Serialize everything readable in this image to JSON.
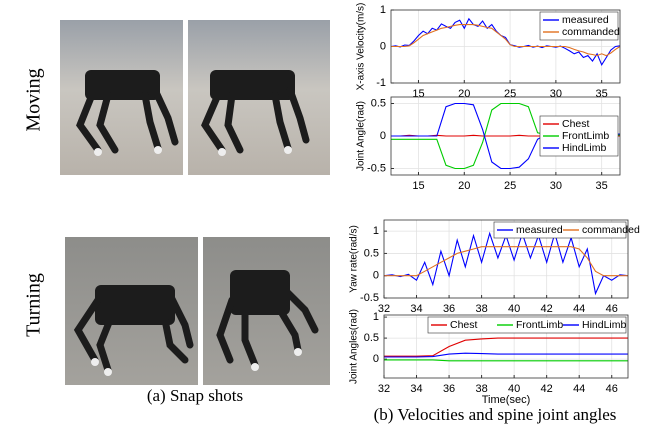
{
  "row_labels": [
    "Moving",
    "Turning"
  ],
  "captions": [
    "(a) Snap shots",
    "(b) Velocities and spine joint angles"
  ],
  "chart_data": [
    {
      "type": "line",
      "ylabel": "X-axis Velocity(m/s)",
      "xlim": [
        12,
        37
      ],
      "ylim": [
        -1,
        1
      ],
      "xticks": [
        15,
        20,
        25,
        30,
        35
      ],
      "yticks": [
        -1,
        0,
        1
      ],
      "grid": true,
      "legend": "upper right",
      "legend_ncol": 1,
      "x": [
        12,
        12.5,
        13,
        13.5,
        14,
        14.5,
        15,
        15.5,
        16,
        16.5,
        17,
        17.5,
        18,
        18.5,
        19,
        19.5,
        20,
        20.5,
        21,
        21.5,
        22,
        22.5,
        23,
        23.5,
        24,
        24.5,
        25,
        25.5,
        26,
        26.5,
        27,
        27.5,
        28,
        28.5,
        29,
        29.5,
        30,
        30.5,
        31,
        31.5,
        32,
        32.5,
        33,
        33.5,
        34,
        34.5,
        35,
        35.5,
        36,
        36.5,
        37
      ],
      "series": [
        {
          "name": "measured",
          "color": "#0000ff",
          "values": [
            0,
            0.02,
            -0.01,
            0.04,
            0.03,
            0.15,
            0.3,
            0.42,
            0.35,
            0.5,
            0.45,
            0.62,
            0.55,
            0.5,
            0.66,
            0.72,
            0.5,
            0.76,
            0.6,
            0.55,
            0.7,
            0.5,
            0.6,
            0.42,
            0.3,
            0.25,
            0.05,
            0.02,
            -0.02,
            0,
            0.03,
            -0.02,
            0.01,
            -0.03,
            0.02,
            0,
            -0.02,
            0.01,
            -0.05,
            -0.12,
            -0.2,
            -0.15,
            -0.3,
            -0.25,
            -0.4,
            -0.2,
            -0.5,
            -0.3,
            -0.1,
            0,
            0.02
          ]
        },
        {
          "name": "commanded",
          "color": "#e07020",
          "values": [
            0,
            0,
            0,
            0,
            0.02,
            0.1,
            0.2,
            0.3,
            0.35,
            0.4,
            0.45,
            0.5,
            0.52,
            0.55,
            0.58,
            0.6,
            0.6,
            0.6,
            0.6,
            0.58,
            0.55,
            0.52,
            0.5,
            0.4,
            0.3,
            0.2,
            0.05,
            0,
            0,
            0,
            0,
            0,
            0,
            0,
            0,
            0,
            0,
            0,
            0,
            -0.03,
            -0.08,
            -0.12,
            -0.15,
            -0.2,
            -0.22,
            -0.25,
            -0.2,
            -0.25,
            -0.18,
            -0.08,
            0
          ]
        }
      ]
    },
    {
      "type": "line",
      "ylabel": "Joint Angle(rad)",
      "xlim": [
        12,
        37
      ],
      "ylim": [
        -0.6,
        0.6
      ],
      "xticks": [
        15,
        20,
        25,
        30,
        35
      ],
      "yticks": [
        -0.5,
        0,
        0.5
      ],
      "grid": true,
      "legend": "center right",
      "legend_ncol": 1,
      "x": [
        12,
        13,
        14,
        15,
        16,
        17,
        18,
        19,
        20,
        21,
        22,
        23,
        24,
        25,
        26,
        27,
        28,
        29,
        30,
        31,
        32,
        33,
        34,
        35,
        36,
        37
      ],
      "series": [
        {
          "name": "Chest",
          "color": "#e00000",
          "values": [
            0,
            0,
            0.01,
            0,
            0,
            0.01,
            0,
            0,
            0,
            0.01,
            0,
            0,
            0,
            0,
            0.01,
            0,
            0,
            0,
            0,
            0,
            0.01,
            0,
            0,
            0,
            0,
            0
          ]
        },
        {
          "name": "FrontLimb",
          "color": "#00cc00",
          "values": [
            -0.05,
            -0.05,
            -0.05,
            -0.05,
            -0.05,
            -0.05,
            -0.45,
            -0.5,
            -0.5,
            -0.45,
            -0.1,
            0.4,
            0.5,
            0.5,
            0.5,
            0.45,
            0.05,
            0.02,
            -0.02,
            0.02,
            -0.02,
            0.02,
            -0.02,
            0.02,
            -0.02,
            0.02
          ]
        },
        {
          "name": "HindLimb",
          "color": "#0000ff",
          "values": [
            0,
            0,
            0,
            0,
            0,
            0,
            0.45,
            0.5,
            0.5,
            0.48,
            0.1,
            -0.4,
            -0.5,
            -0.5,
            -0.48,
            -0.35,
            -0.05,
            0.03,
            0.03,
            0.03,
            0.03,
            0.03,
            0.03,
            0.03,
            0.03,
            0.03
          ]
        }
      ]
    },
    {
      "type": "line",
      "ylabel": "Yaw rate(rad/s)",
      "xlim": [
        32,
        47
      ],
      "ylim": [
        -0.5,
        1.25
      ],
      "xticks": [
        32,
        34,
        36,
        38,
        40,
        42,
        44,
        46
      ],
      "yticks": [
        -0.5,
        0,
        0.5,
        1
      ],
      "grid": true,
      "legend": "upper right",
      "legend_ncol": 2,
      "x": [
        32,
        32.5,
        33,
        33.5,
        34,
        34.5,
        35,
        35.5,
        36,
        36.5,
        37,
        37.5,
        38,
        38.5,
        39,
        39.5,
        40,
        40.5,
        41,
        41.5,
        42,
        42.5,
        43,
        43.5,
        44,
        44.5,
        45,
        45.5,
        46,
        46.5,
        47
      ],
      "series": [
        {
          "name": "measured",
          "color": "#0000ff",
          "values": [
            0,
            0.02,
            -0.02,
            0.03,
            -0.1,
            0.3,
            -0.2,
            0.55,
            0,
            0.8,
            0.2,
            0.9,
            0.3,
            0.95,
            0.4,
            0.9,
            0.35,
            0.95,
            0.4,
            0.9,
            0.3,
            0.95,
            0.3,
            0.85,
            0.2,
            0.6,
            -0.4,
            0,
            -0.1,
            0.02,
            0
          ]
        },
        {
          "name": "commanded",
          "color": "#e07020",
          "values": [
            0,
            0,
            0,
            0,
            0,
            0.1,
            0.2,
            0.3,
            0.4,
            0.5,
            0.55,
            0.6,
            0.65,
            0.65,
            0.65,
            0.65,
            0.65,
            0.65,
            0.65,
            0.65,
            0.65,
            0.65,
            0.65,
            0.65,
            0.6,
            0.4,
            0.1,
            0,
            0,
            0,
            0
          ]
        }
      ]
    },
    {
      "type": "line",
      "ylabel": "Joint Angles(rad)",
      "xlabel": "Time(sec)",
      "xlim": [
        32,
        47
      ],
      "ylim": [
        -0.45,
        1.05
      ],
      "xticks": [
        32,
        34,
        36,
        38,
        40,
        42,
        44,
        46
      ],
      "yticks": [
        0,
        0.5,
        1
      ],
      "grid": true,
      "legend": "upper right",
      "legend_ncol": 3,
      "x": [
        32,
        33,
        34,
        35,
        36,
        37,
        38,
        39,
        40,
        41,
        42,
        43,
        44,
        45,
        46,
        47
      ],
      "series": [
        {
          "name": "Chest",
          "color": "#e00000",
          "values": [
            0.07,
            0.07,
            0.07,
            0.08,
            0.3,
            0.45,
            0.48,
            0.5,
            0.5,
            0.5,
            0.5,
            0.5,
            0.5,
            0.5,
            0.5,
            0.5
          ]
        },
        {
          "name": "FrontLimb",
          "color": "#00cc00",
          "values": [
            -0.02,
            -0.02,
            -0.02,
            -0.02,
            -0.04,
            -0.04,
            -0.04,
            -0.04,
            -0.04,
            -0.04,
            -0.04,
            -0.04,
            -0.04,
            -0.04,
            -0.04,
            -0.04
          ]
        },
        {
          "name": "HindLimb",
          "color": "#0000ff",
          "values": [
            0.05,
            0.05,
            0.05,
            0.06,
            0.12,
            0.14,
            0.13,
            0.12,
            0.12,
            0.12,
            0.12,
            0.12,
            0.12,
            0.12,
            0.12,
            0.12
          ]
        }
      ]
    }
  ]
}
